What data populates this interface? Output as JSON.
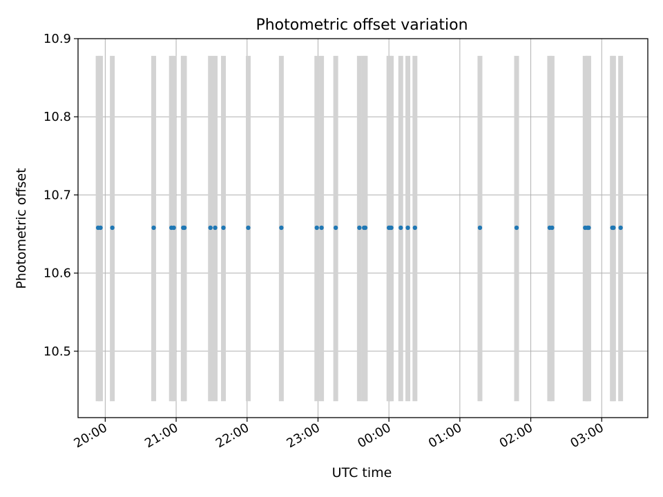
{
  "chart_data": {
    "type": "scatter",
    "title": "Photometric offset variation",
    "xlabel": "UTC time",
    "ylabel": "Photometric offset",
    "grid": true,
    "xlim": [
      "19:37",
      "03:39"
    ],
    "ylim": [
      10.415,
      10.9
    ],
    "x_ticks": [
      "20:00",
      "21:00",
      "22:00",
      "23:00",
      "00:00",
      "01:00",
      "02:00",
      "03:00"
    ],
    "y_ticks": [
      "10.5",
      "10.6",
      "10.7",
      "10.8",
      "10.9"
    ],
    "band_range": [
      10.436,
      10.878
    ],
    "colors": {
      "points": "#1f77b4",
      "bands": "#d3d3d3",
      "grid": "#b0b0b0"
    },
    "series": [
      {
        "x": [
          "19:54",
          "19:56",
          "20:06",
          "20:41",
          "20:56",
          "20:58",
          "21:06",
          "21:07",
          "21:29",
          "21:33",
          "21:40",
          "22:01",
          "22:29",
          "22:59",
          "23:03",
          "23:15",
          "23:35",
          "23:39",
          "23:40",
          "00:00",
          "00:01",
          "00:02",
          "00:10",
          "00:16",
          "00:22",
          "01:17",
          "01:48",
          "02:16",
          "02:18",
          "02:46",
          "02:48",
          "02:49",
          "03:09",
          "03:10",
          "03:16"
        ],
        "y": [
          10.658,
          10.658,
          10.658,
          10.658,
          10.658,
          10.658,
          10.658,
          10.658,
          10.658,
          10.658,
          10.658,
          10.658,
          10.658,
          10.658,
          10.658,
          10.658,
          10.658,
          10.658,
          10.658,
          10.658,
          10.658,
          10.658,
          10.658,
          10.658,
          10.658,
          10.658,
          10.658,
          10.658,
          10.658,
          10.658,
          10.658,
          10.658,
          10.658,
          10.658,
          10.658
        ]
      }
    ]
  }
}
